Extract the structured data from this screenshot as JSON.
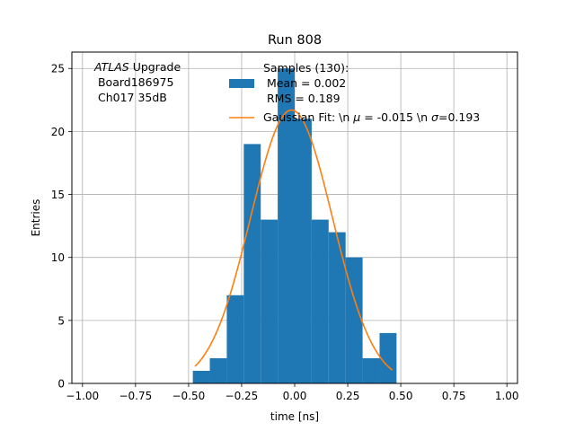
{
  "chart_data": {
    "type": "bar",
    "title": "Run 808",
    "xlabel": "time [ns]",
    "ylabel": "Entries",
    "xlim": [
      -1.05,
      1.05
    ],
    "ylim": [
      0,
      26.3
    ],
    "xticks": [
      -1.0,
      -0.75,
      -0.5,
      -0.25,
      0.0,
      0.25,
      0.5,
      0.75,
      1.0
    ],
    "xtick_labels": [
      "−1.00",
      "−0.75",
      "−0.50",
      "−0.25",
      "0.00",
      "0.25",
      "0.50",
      "0.75",
      "1.00"
    ],
    "yticks": [
      0,
      5,
      10,
      15,
      20,
      25
    ],
    "ytick_labels": [
      "0",
      "5",
      "10",
      "15",
      "20",
      "25"
    ],
    "grid": true,
    "colors": {
      "histogram": "#1f77b4",
      "fit": "#ff7f0e",
      "grid": "#b0b0b0"
    },
    "histogram": {
      "bin_edges": [
        -0.48,
        -0.4,
        -0.32,
        -0.24,
        -0.16,
        -0.08,
        0.0,
        0.08,
        0.16,
        0.24,
        0.32,
        0.4,
        0.48
      ],
      "counts": [
        1,
        2,
        7,
        19,
        13,
        25,
        21,
        13,
        12,
        10,
        2,
        4
      ]
    },
    "gaussian_fit": {
      "mu": -0.015,
      "sigma": 0.193,
      "amplitude": 21.7,
      "x_range": [
        -0.47,
        0.46
      ]
    },
    "annotation": {
      "italic": "ATLAS",
      "line1_rest": " Upgrade",
      "line2": " Board186975",
      "line3": " Ch017 35dB"
    },
    "legend": {
      "placement": "top-center",
      "samples_title": "Samples (130):",
      "samples_mean": " Mean = 0.002",
      "samples_rms": " RMS = 0.189",
      "fit_part1": "Gaussian Fit: \\n ",
      "fit_mu_symbol": "μ",
      "fit_part2": " = -0.015 \\n ",
      "fit_sigma_symbol": "σ",
      "fit_part3": "=0.193"
    }
  }
}
